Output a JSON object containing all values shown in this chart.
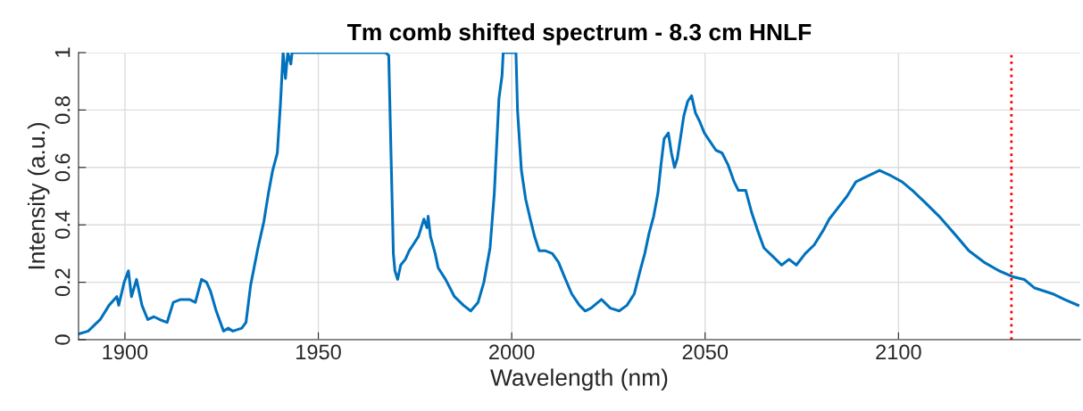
{
  "chart_data": {
    "type": "line",
    "title": "Tm comb shifted spectrum - 8.3 cm HNLF",
    "xlabel": "Wavelength (nm)",
    "ylabel": "Intensity (a.u.)",
    "x": [
      1888.0,
      1890.5,
      1893.6,
      1895.9,
      1897.9,
      1898.4,
      1899.8,
      1900.9,
      1901.7,
      1903.0,
      1904.4,
      1905.9,
      1907.5,
      1909.0,
      1910.9,
      1912.5,
      1914.4,
      1916.7,
      1918.2,
      1919.8,
      1921.1,
      1922.1,
      1923.6,
      1925.5,
      1926.7,
      1927.9,
      1930.2,
      1931.3,
      1932.5,
      1934.4,
      1935.9,
      1937.1,
      1938.2,
      1939.4,
      1940.2,
      1940.9,
      1941.5,
      1942.1,
      1942.9,
      1943.2,
      1967.4,
      1968.2,
      1969.4,
      1969.8,
      1970.5,
      1971.3,
      1972.5,
      1973.5,
      1974.0,
      1975.9,
      1977.3,
      1978.1,
      1978.4,
      1979.0,
      1980.2,
      1981.0,
      1982.9,
      1985.2,
      1987.5,
      1989.4,
      1991.3,
      1992.8,
      1994.4,
      1995.5,
      1996.7,
      1997.5,
      1997.8,
      2001.1,
      2001.5,
      2002.5,
      2003.6,
      2004.8,
      2005.9,
      2007.1,
      2008.6,
      2010.5,
      2012.1,
      2013.6,
      2015.5,
      2017.5,
      2019.0,
      2020.5,
      2023.2,
      2025.5,
      2027.8,
      2029.8,
      2031.7,
      2033.2,
      2034.4,
      2035.5,
      2036.7,
      2037.8,
      2038.6,
      2039.4,
      2040.5,
      2041.3,
      2042.1,
      2042.8,
      2043.6,
      2044.5,
      2045.5,
      2046.5,
      2047.5,
      2048.6,
      2049.8,
      2051.3,
      2052.8,
      2054.4,
      2055.9,
      2057.5,
      2058.6,
      2060.5,
      2062.1,
      2063.6,
      2065.2,
      2067.5,
      2069.8,
      2071.7,
      2073.6,
      2075.9,
      2078.2,
      2080.5,
      2082.1,
      2084.4,
      2086.7,
      2089.0,
      2092.1,
      2095.1,
      2098.2,
      2100.9,
      2103.6,
      2106.7,
      2110.5,
      2114.4,
      2118.2,
      2122.1,
      2126.0,
      2129.4,
      2132.5,
      2135.2,
      2139.8,
      2142.9,
      2146.4
    ],
    "series": [
      {
        "color": "#0072bd",
        "values": [
          0.02,
          0.03,
          0.07,
          0.12,
          0.15,
          0.12,
          0.2,
          0.24,
          0.15,
          0.21,
          0.12,
          0.07,
          0.08,
          0.07,
          0.06,
          0.13,
          0.14,
          0.14,
          0.13,
          0.21,
          0.2,
          0.17,
          0.1,
          0.03,
          0.04,
          0.03,
          0.04,
          0.06,
          0.19,
          0.32,
          0.41,
          0.51,
          0.59,
          0.65,
          0.82,
          1.0,
          0.91,
          1.0,
          0.96,
          1.0,
          1.0,
          0.99,
          0.3,
          0.24,
          0.21,
          0.26,
          0.28,
          0.31,
          0.32,
          0.36,
          0.42,
          0.39,
          0.43,
          0.36,
          0.3,
          0.25,
          0.21,
          0.15,
          0.12,
          0.1,
          0.13,
          0.2,
          0.32,
          0.51,
          0.84,
          0.92,
          1.0,
          1.0,
          0.8,
          0.59,
          0.49,
          0.42,
          0.36,
          0.31,
          0.31,
          0.3,
          0.27,
          0.22,
          0.16,
          0.12,
          0.1,
          0.11,
          0.14,
          0.11,
          0.1,
          0.12,
          0.16,
          0.24,
          0.3,
          0.37,
          0.43,
          0.51,
          0.61,
          0.7,
          0.72,
          0.65,
          0.6,
          0.63,
          0.7,
          0.78,
          0.83,
          0.85,
          0.79,
          0.76,
          0.72,
          0.69,
          0.66,
          0.65,
          0.61,
          0.55,
          0.52,
          0.52,
          0.44,
          0.38,
          0.32,
          0.29,
          0.26,
          0.28,
          0.26,
          0.3,
          0.33,
          0.38,
          0.42,
          0.46,
          0.5,
          0.55,
          0.57,
          0.59,
          0.57,
          0.55,
          0.52,
          0.48,
          0.43,
          0.37,
          0.31,
          0.27,
          0.24,
          0.22,
          0.21,
          0.18,
          0.16,
          0.14,
          0.12
        ]
      }
    ],
    "xlim": [
      1888,
      2147
    ],
    "ylim": [
      0,
      1
    ],
    "xticks": [
      1900,
      1950,
      2000,
      2050,
      2100
    ],
    "yticks": [
      0,
      0.2,
      0.4,
      0.6,
      0.8,
      1
    ],
    "grid": true,
    "line_style": "solid",
    "ref_lines": [
      {
        "axis": "x",
        "value": 2129.2,
        "color": "#ff0000",
        "line_style": "dotted"
      }
    ]
  }
}
